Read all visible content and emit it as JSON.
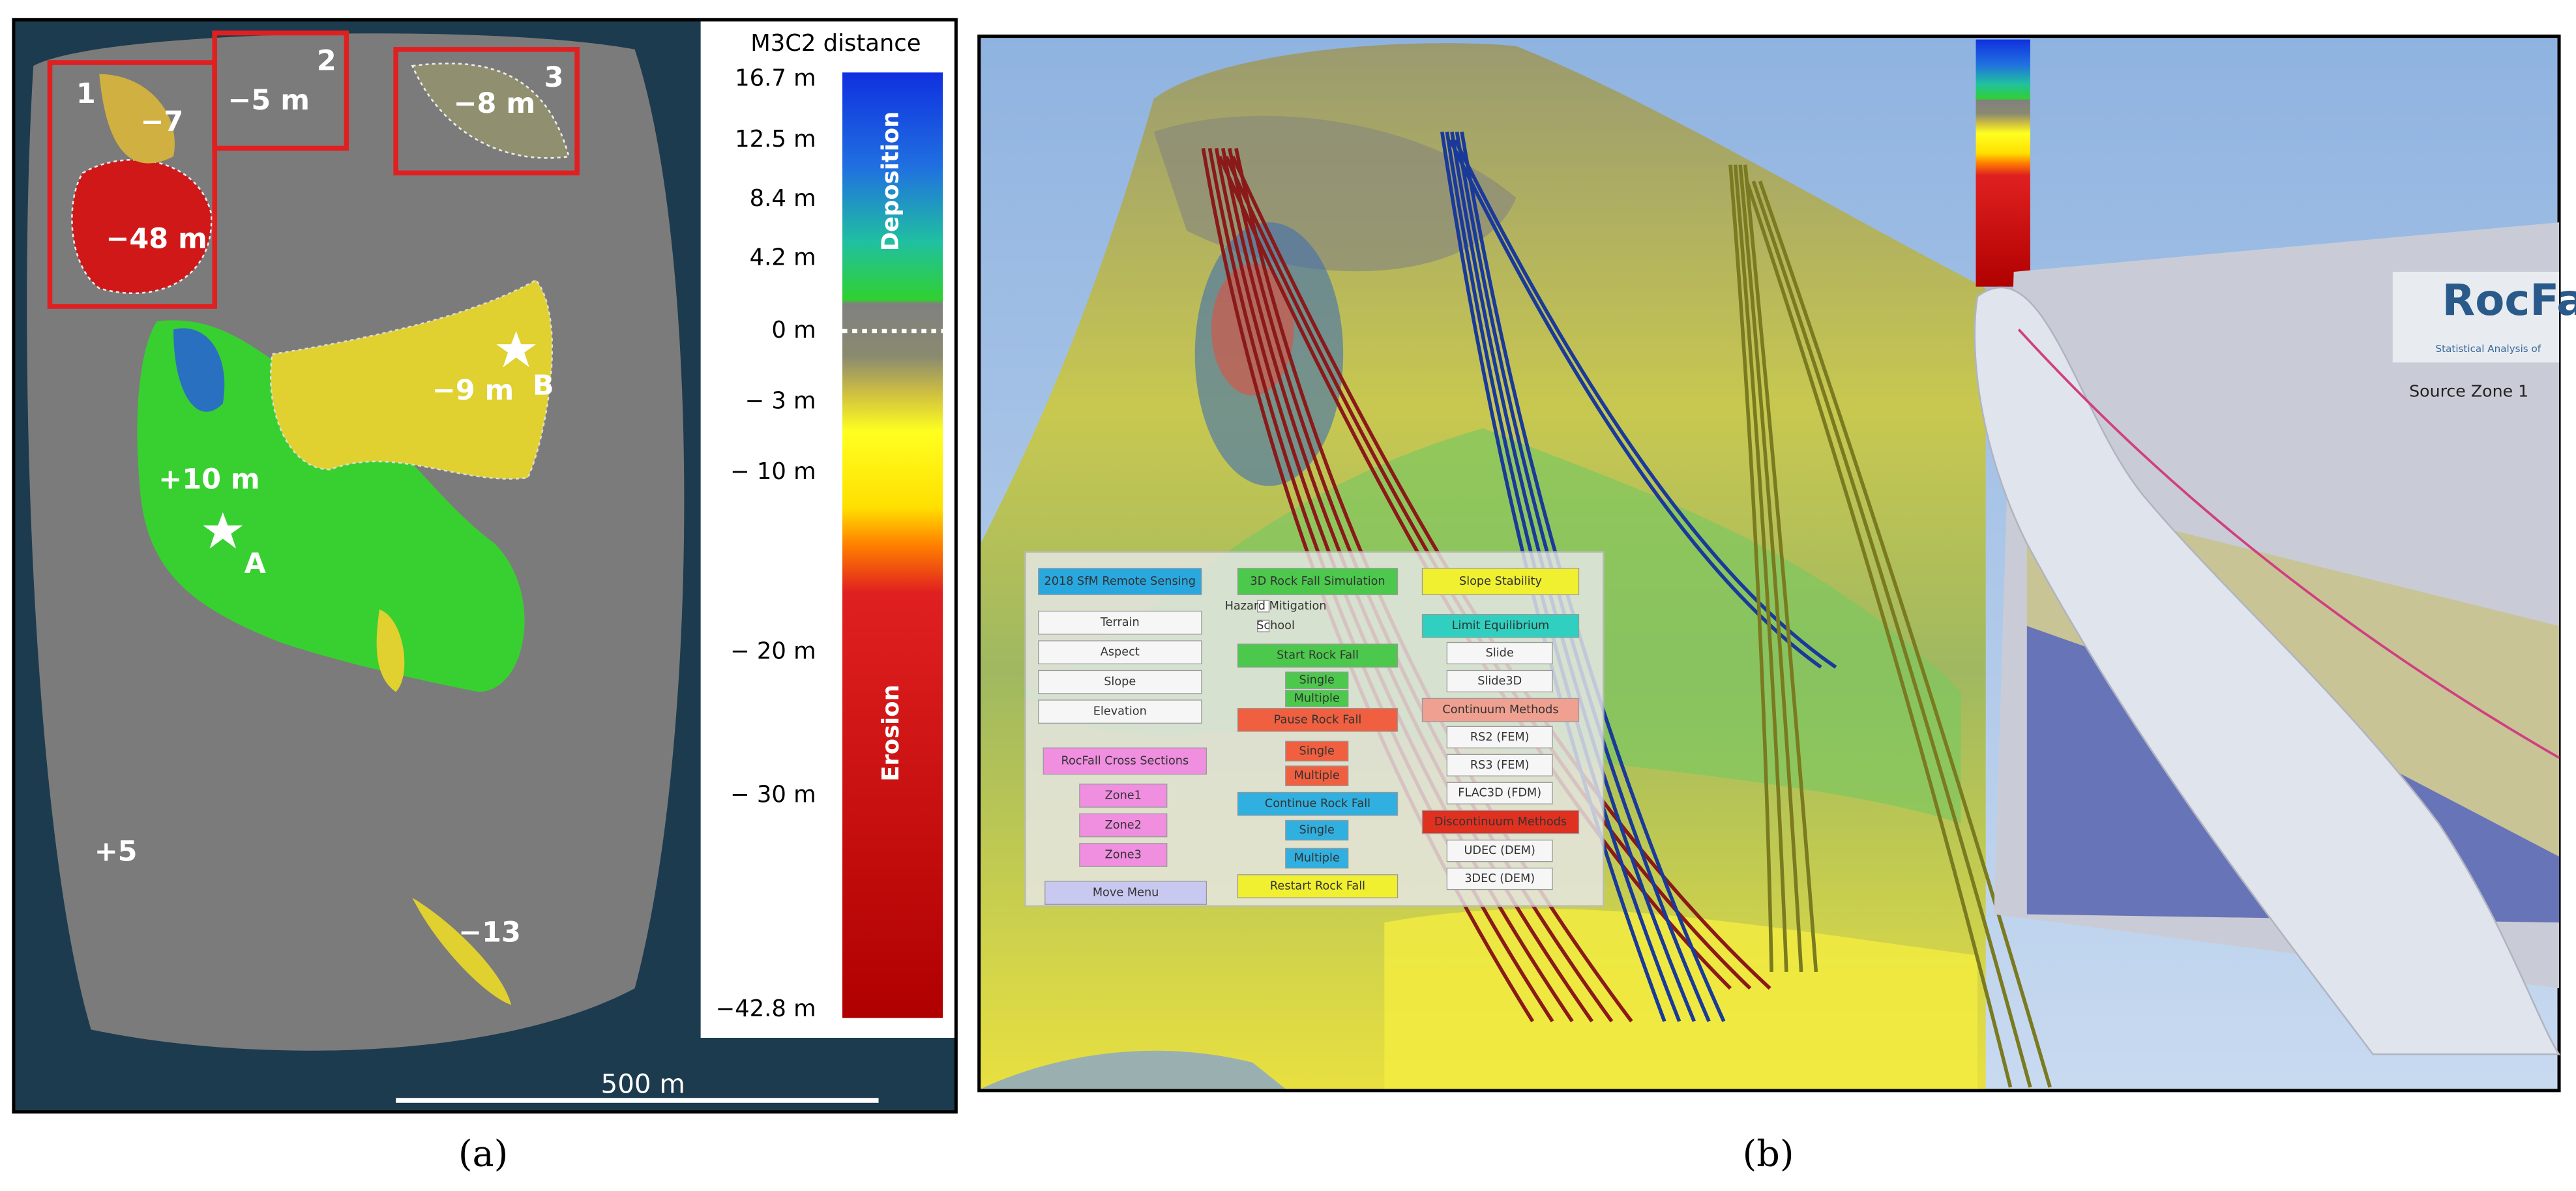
{
  "panel_a": {
    "caption": "(a)",
    "zones": [
      "1",
      "2",
      "3"
    ],
    "labels": {
      "zone1_small": "−7",
      "zone1": "−48 m",
      "zone2": "−5 m",
      "zone3": "−8 m",
      "b_value": "−9 m",
      "b": "B",
      "a_value": "+10 m",
      "a": "A",
      "small_plus": "+5",
      "small_minus": "−13"
    },
    "scale_bar": "500 m",
    "colorbar": {
      "title": "M3C2 distance",
      "ticks": [
        "16.7 m",
        "12.5 m",
        "8.4 m",
        "4.2 m",
        "0 m",
        "− 3 m",
        "− 10 m",
        "− 20 m",
        "− 30 m",
        "−42.8 m"
      ],
      "deposition": "Deposition",
      "erosion": "Erosion"
    }
  },
  "panel_b": {
    "caption": "(b)",
    "menu": {
      "remote_sensing": {
        "header": "2018 SfM Remote Sensing",
        "items": [
          "Terrain",
          "Aspect",
          "Slope",
          "Elevation"
        ]
      },
      "cross_sections": {
        "header": "RocFall Cross Sections",
        "items": [
          "Zone1",
          "Zone2",
          "Zone3"
        ]
      },
      "move_menu": "Move Menu",
      "simulation": {
        "header": "3D Rock Fall Simulation",
        "options": [
          "Hazard Mitigation",
          "School"
        ],
        "start": "Start Rock Fall",
        "start_items": [
          "Single",
          "Multiple"
        ],
        "pause": "Pause Rock Fall",
        "pause_items": [
          "Single",
          "Multiple"
        ],
        "continue": "Continue Rock Fall",
        "continue_items": [
          "Single",
          "Multiple"
        ],
        "restart": "Restart Rock Fall"
      },
      "stability": {
        "header": "Slope Stability",
        "limit_equilibrium": "Limit Equilibrium",
        "le_items": [
          "Slide",
          "Slide3D"
        ],
        "continuum": "Continuum Methods",
        "continuum_items": [
          "RS2 (FEM)",
          "RS3 (FEM)",
          "FLAC3D (FDM)"
        ],
        "discontinuum": "Discontinuum Methods",
        "discontinuum_items": [
          "UDEC (DEM)",
          "3DEC (DEM)"
        ]
      }
    },
    "rocfall_window": {
      "logo": "RocFall",
      "subtitle": "Statistical Analysis of",
      "source": "Source Zone 1"
    }
  }
}
